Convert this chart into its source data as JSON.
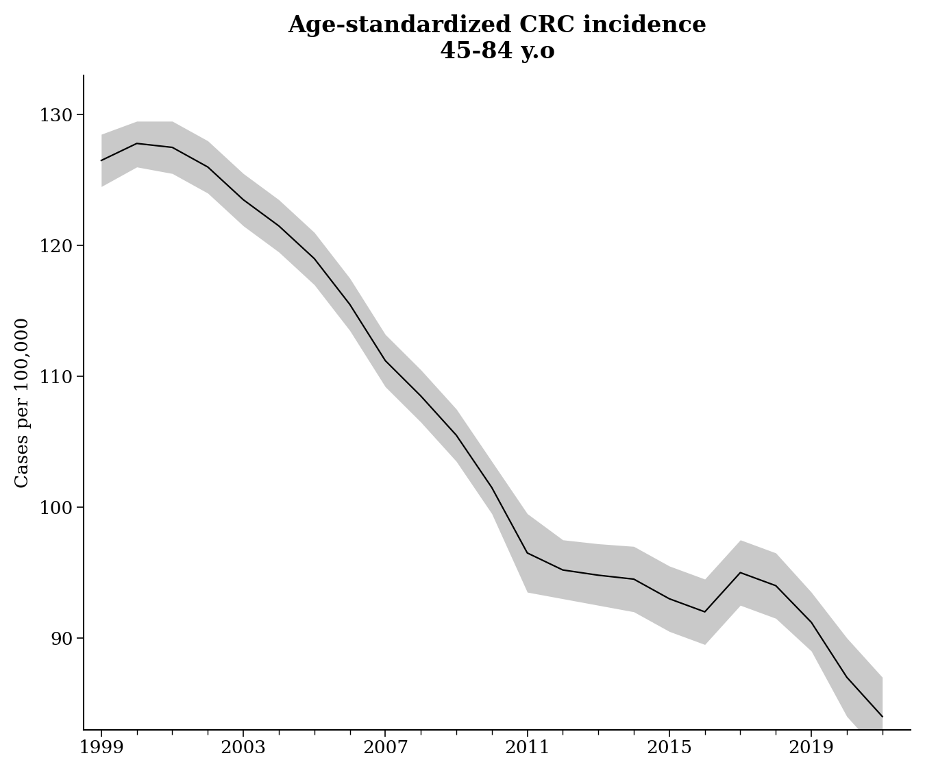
{
  "title_line1": "Age-standardized CRC incidence",
  "title_line2": "45-84 y.o",
  "ylabel": "Cases per 100,000",
  "years": [
    1999,
    2000,
    2001,
    2002,
    2003,
    2004,
    2005,
    2006,
    2007,
    2008,
    2009,
    2010,
    2011,
    2012,
    2013,
    2014,
    2015,
    2016,
    2017,
    2018,
    2019,
    2020,
    2021
  ],
  "values": [
    126.5,
    127.8,
    127.5,
    126.0,
    123.5,
    121.5,
    119.0,
    115.5,
    111.2,
    108.5,
    105.5,
    101.5,
    96.5,
    95.2,
    94.8,
    94.5,
    93.0,
    92.0,
    95.0,
    94.0,
    91.2,
    87.0,
    84.0
  ],
  "ci_lower": [
    124.5,
    126.0,
    125.5,
    124.0,
    121.5,
    119.5,
    117.0,
    113.5,
    109.2,
    106.5,
    103.5,
    99.5,
    93.5,
    93.0,
    92.5,
    92.0,
    90.5,
    89.5,
    92.5,
    91.5,
    89.0,
    84.0,
    81.0
  ],
  "ci_upper": [
    128.5,
    129.5,
    129.5,
    128.0,
    125.5,
    123.5,
    121.0,
    117.5,
    113.2,
    110.5,
    107.5,
    103.5,
    99.5,
    97.5,
    97.2,
    97.0,
    95.5,
    94.5,
    97.5,
    96.5,
    93.5,
    90.0,
    87.0
  ],
  "xlim": [
    1998.5,
    2021.8
  ],
  "ylim": [
    83.0,
    133.0
  ],
  "xticks": [
    1999,
    2003,
    2007,
    2011,
    2015,
    2019
  ],
  "yticks": [
    90,
    100,
    110,
    120,
    130
  ],
  "minor_xticks": [
    1999,
    2000,
    2001,
    2002,
    2003,
    2004,
    2005,
    2006,
    2007,
    2008,
    2009,
    2010,
    2011,
    2012,
    2013,
    2014,
    2015,
    2016,
    2017,
    2018,
    2019,
    2020,
    2021
  ],
  "line_color": "#000000",
  "ci_color": "#c0c0c0",
  "ci_alpha": 0.85,
  "background_color": "#ffffff",
  "title_fontsize": 24,
  "axis_label_fontsize": 19,
  "tick_fontsize": 19,
  "line_width": 1.6
}
